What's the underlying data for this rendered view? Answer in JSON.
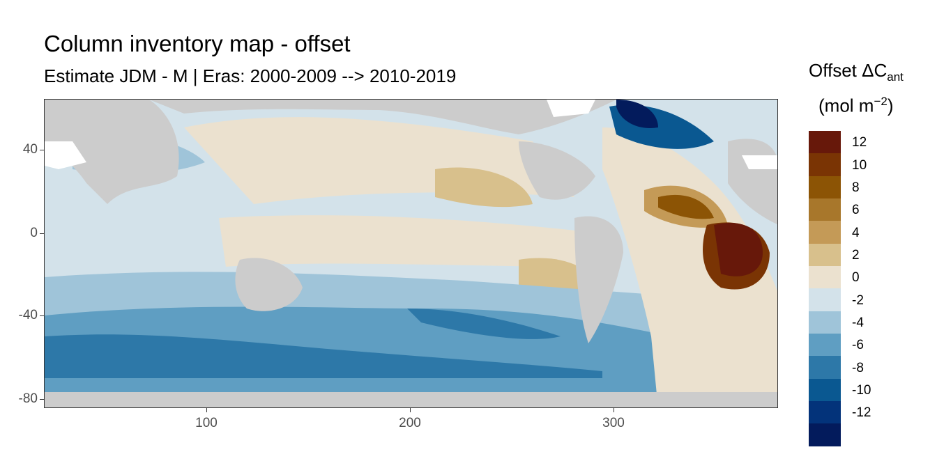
{
  "title": "Column inventory map - offset",
  "subtitle": "Estimate JDM - M | Eras: 2000-2009 --> 2010-2019",
  "legend": {
    "title_main": "Offset ΔC",
    "title_sub": "ant",
    "unit_open": "(mol m",
    "unit_sup": "−2",
    "unit_close": ")",
    "bins": [
      {
        "label": "12",
        "color": "#67180a"
      },
      {
        "label": "10",
        "color": "#7a3404"
      },
      {
        "label": "8",
        "color": "#8c5405"
      },
      {
        "label": "6",
        "color": "#a8772b"
      },
      {
        "label": "4",
        "color": "#c49a57"
      },
      {
        "label": "2",
        "color": "#d8c08c"
      },
      {
        "label": "0",
        "color": "#ebe1cf"
      },
      {
        "label": "-2",
        "color": "#d3e2ea"
      },
      {
        "label": "-4",
        "color": "#9fc4d9"
      },
      {
        "label": "-6",
        "color": "#5f9ec2"
      },
      {
        "label": "-8",
        "color": "#2d78a8"
      },
      {
        "label": "-10",
        "color": "#0a5891"
      },
      {
        "label": "-12",
        "color": "#03337a"
      },
      {
        "label": "",
        "color": "#031b5c"
      }
    ]
  },
  "axes": {
    "x_ticks": [
      "100",
      "200",
      "300"
    ],
    "y_ticks": [
      "40",
      "0",
      "-40",
      "-80"
    ]
  },
  "colors": {
    "land": "#cccccc",
    "missing": "#ffffff"
  }
}
